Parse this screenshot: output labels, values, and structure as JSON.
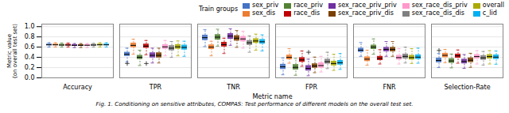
{
  "chart_data": {
    "type": "box",
    "title": "Train groups",
    "xlabel": "Metric name",
    "ylabel": "Metric value\n(on overall test set)",
    "caption": "Fig. 1.  Conditioning on sensitive attributes, COMPAS: Test performance of different models on the overall test set.",
    "categories": [
      "Accuracy",
      "TPR",
      "TNR",
      "FPR",
      "FNR",
      "Selection-Rate"
    ],
    "series": [
      {
        "name": "sex_priv",
        "color": "#4472C4",
        "values": [
          {
            "q1": 0.63,
            "med": 0.645,
            "q3": 0.66,
            "whislo": 0.6,
            "whishi": 0.685,
            "fliers": []
          },
          {
            "q1": 0.42,
            "med": 0.46,
            "q3": 0.5,
            "whislo": 0.31,
            "whishi": 0.58,
            "fliers": [
              0.28
            ]
          },
          {
            "q1": 0.73,
            "med": 0.785,
            "q3": 0.835,
            "whislo": 0.61,
            "whishi": 0.94,
            "fliers": []
          },
          {
            "q1": 0.165,
            "med": 0.215,
            "q3": 0.265,
            "whislo": 0.06,
            "whishi": 0.39,
            "fliers": []
          },
          {
            "q1": 0.5,
            "med": 0.54,
            "q3": 0.58,
            "whislo": 0.42,
            "whishi": 0.69,
            "fliers": []
          },
          {
            "q1": 0.295,
            "med": 0.34,
            "q3": 0.385,
            "whislo": 0.2,
            "whishi": 0.475,
            "fliers": [
              0.535
            ]
          }
        ]
      },
      {
        "name": "sex_dis",
        "color": "#ED7D31",
        "values": [
          {
            "q1": 0.63,
            "med": 0.645,
            "q3": 0.66,
            "whislo": 0.6,
            "whishi": 0.685,
            "fliers": []
          },
          {
            "q1": 0.59,
            "med": 0.635,
            "q3": 0.68,
            "whislo": 0.46,
            "whishi": 0.755,
            "fliers": []
          },
          {
            "q1": 0.555,
            "med": 0.6,
            "q3": 0.645,
            "whislo": 0.43,
            "whishi": 0.715,
            "fliers": []
          },
          {
            "q1": 0.355,
            "med": 0.4,
            "q3": 0.445,
            "whislo": 0.285,
            "whishi": 0.57,
            "fliers": []
          },
          {
            "q1": 0.32,
            "med": 0.365,
            "q3": 0.41,
            "whislo": 0.245,
            "whishi": 0.54,
            "fliers": []
          },
          {
            "q1": 0.395,
            "med": 0.44,
            "q3": 0.48,
            "whislo": 0.295,
            "whishi": 0.555,
            "fliers": []
          }
        ]
      },
      {
        "name": "race_priv",
        "color": "#548235",
        "values": [
          {
            "q1": 0.625,
            "med": 0.64,
            "q3": 0.655,
            "whislo": 0.6,
            "whishi": 0.68,
            "fliers": []
          },
          {
            "q1": 0.36,
            "med": 0.4,
            "q3": 0.44,
            "whislo": 0.24,
            "whishi": 0.54,
            "fliers": []
          },
          {
            "q1": 0.74,
            "med": 0.795,
            "q3": 0.845,
            "whislo": 0.62,
            "whishi": 0.95,
            "fliers": []
          },
          {
            "q1": 0.155,
            "med": 0.205,
            "q3": 0.26,
            "whislo": 0.05,
            "whishi": 0.38,
            "fliers": []
          },
          {
            "q1": 0.556,
            "med": 0.6,
            "q3": 0.64,
            "whislo": 0.46,
            "whishi": 0.76,
            "fliers": []
          },
          {
            "q1": 0.285,
            "med": 0.33,
            "q3": 0.375,
            "whislo": 0.195,
            "whishi": 0.465,
            "fliers": []
          }
        ]
      },
      {
        "name": "race_dis",
        "color": "#C00000",
        "values": [
          {
            "q1": 0.625,
            "med": 0.64,
            "q3": 0.655,
            "whislo": 0.6,
            "whishi": 0.68,
            "fliers": []
          },
          {
            "q1": 0.58,
            "med": 0.62,
            "q3": 0.66,
            "whislo": 0.45,
            "whishi": 0.73,
            "fliers": [
              0.28
            ]
          },
          {
            "q1": 0.605,
            "med": 0.65,
            "q3": 0.695,
            "whislo": 0.475,
            "whishi": 0.775,
            "fliers": []
          },
          {
            "q1": 0.305,
            "med": 0.35,
            "q3": 0.395,
            "whislo": 0.225,
            "whishi": 0.525,
            "fliers": []
          },
          {
            "q1": 0.34,
            "med": 0.38,
            "q3": 0.42,
            "whislo": 0.27,
            "whishi": 0.55,
            "fliers": []
          },
          {
            "q1": 0.385,
            "med": 0.43,
            "q3": 0.465,
            "whislo": 0.285,
            "whishi": 0.545,
            "fliers": []
          }
        ]
      },
      {
        "name": "sex_race_priv_priv",
        "color": "#7030A0",
        "values": [
          {
            "q1": 0.62,
            "med": 0.635,
            "q3": 0.65,
            "whislo": 0.59,
            "whishi": 0.67,
            "fliers": []
          },
          {
            "q1": 0.39,
            "med": 0.44,
            "q3": 0.49,
            "whislo": 0.29,
            "whishi": 0.58,
            "fliers": []
          },
          {
            "q1": 0.755,
            "med": 0.815,
            "q3": 0.865,
            "whislo": 0.635,
            "whishi": 0.96,
            "fliers": []
          },
          {
            "q1": 0.135,
            "med": 0.185,
            "q3": 0.24,
            "whislo": 0.04,
            "whishi": 0.365,
            "fliers": [
              0.5
            ]
          },
          {
            "q1": 0.51,
            "med": 0.555,
            "q3": 0.595,
            "whislo": 0.42,
            "whishi": 0.71,
            "fliers": []
          },
          {
            "q1": 0.275,
            "med": 0.32,
            "q3": 0.365,
            "whislo": 0.185,
            "whishi": 0.455,
            "fliers": []
          }
        ]
      },
      {
        "name": "sex_race_priv_dis",
        "color": "#7B3F00",
        "values": [
          {
            "q1": 0.62,
            "med": 0.635,
            "q3": 0.65,
            "whislo": 0.59,
            "whishi": 0.67,
            "fliers": []
          },
          {
            "q1": 0.39,
            "med": 0.44,
            "q3": 0.49,
            "whislo": 0.29,
            "whishi": 0.58,
            "fliers": []
          },
          {
            "q1": 0.72,
            "med": 0.775,
            "q3": 0.825,
            "whislo": 0.595,
            "whishi": 0.925,
            "fliers": []
          },
          {
            "q1": 0.19,
            "med": 0.23,
            "q3": 0.275,
            "whislo": 0.1,
            "whishi": 0.405,
            "fliers": []
          },
          {
            "q1": 0.51,
            "med": 0.555,
            "q3": 0.595,
            "whislo": 0.42,
            "whishi": 0.71,
            "fliers": []
          },
          {
            "q1": 0.3,
            "med": 0.345,
            "q3": 0.39,
            "whislo": 0.205,
            "whishi": 0.48,
            "fliers": []
          }
        ]
      },
      {
        "name": "sex_race_dis_priv",
        "color": "#FF99CC",
        "values": [
          {
            "q1": 0.62,
            "med": 0.637,
            "q3": 0.652,
            "whislo": 0.59,
            "whishi": 0.67,
            "fliers": []
          },
          {
            "q1": 0.56,
            "med": 0.605,
            "q3": 0.65,
            "whislo": 0.43,
            "whishi": 0.73,
            "fliers": []
          },
          {
            "q1": 0.705,
            "med": 0.76,
            "q3": 0.81,
            "whislo": 0.58,
            "whishi": 0.91,
            "fliers": []
          },
          {
            "q1": 0.19,
            "med": 0.24,
            "q3": 0.295,
            "whislo": 0.115,
            "whishi": 0.42,
            "fliers": []
          },
          {
            "q1": 0.35,
            "med": 0.395,
            "q3": 0.44,
            "whislo": 0.27,
            "whishi": 0.57,
            "fliers": []
          },
          {
            "q1": 0.37,
            "med": 0.415,
            "q3": 0.455,
            "whislo": 0.27,
            "whishi": 0.53,
            "fliers": []
          }
        ]
      },
      {
        "name": "sex_race_dis_dis",
        "color": "#808080",
        "values": [
          {
            "q1": 0.625,
            "med": 0.64,
            "q3": 0.655,
            "whislo": 0.6,
            "whishi": 0.675,
            "fliers": []
          },
          {
            "q1": 0.53,
            "med": 0.58,
            "q3": 0.63,
            "whislo": 0.4,
            "whishi": 0.71,
            "fliers": []
          },
          {
            "q1": 0.635,
            "med": 0.685,
            "q3": 0.73,
            "whislo": 0.5,
            "whishi": 0.82,
            "fliers": []
          },
          {
            "q1": 0.27,
            "med": 0.315,
            "q3": 0.365,
            "whislo": 0.18,
            "whishi": 0.5,
            "fliers": []
          },
          {
            "q1": 0.37,
            "med": 0.42,
            "q3": 0.465,
            "whislo": 0.29,
            "whishi": 0.6,
            "fliers": []
          },
          {
            "q1": 0.345,
            "med": 0.39,
            "q3": 0.435,
            "whislo": 0.25,
            "whishi": 0.515,
            "fliers": []
          }
        ]
      },
      {
        "name": "overall",
        "color": "#AAAA00",
        "values": [
          {
            "q1": 0.63,
            "med": 0.645,
            "q3": 0.66,
            "whislo": 0.6,
            "whishi": 0.685,
            "fliers": []
          },
          {
            "q1": 0.56,
            "med": 0.605,
            "q3": 0.65,
            "whislo": 0.43,
            "whishi": 0.72,
            "fliers": []
          },
          {
            "q1": 0.675,
            "med": 0.72,
            "q3": 0.765,
            "whislo": 0.54,
            "whishi": 0.855,
            "fliers": []
          },
          {
            "q1": 0.235,
            "med": 0.28,
            "q3": 0.325,
            "whislo": 0.145,
            "whishi": 0.46,
            "fliers": []
          },
          {
            "q1": 0.35,
            "med": 0.395,
            "q3": 0.44,
            "whislo": 0.28,
            "whishi": 0.57,
            "fliers": []
          },
          {
            "q1": 0.37,
            "med": 0.415,
            "q3": 0.455,
            "whislo": 0.27,
            "whishi": 0.53,
            "fliers": []
          }
        ]
      },
      {
        "name": "c_lid",
        "color": "#00B0F0",
        "values": [
          {
            "q1": 0.63,
            "med": 0.645,
            "q3": 0.66,
            "whislo": 0.6,
            "whishi": 0.685,
            "fliers": []
          },
          {
            "q1": 0.545,
            "med": 0.595,
            "q3": 0.64,
            "whislo": 0.42,
            "whishi": 0.715,
            "fliers": []
          },
          {
            "q1": 0.66,
            "med": 0.705,
            "q3": 0.75,
            "whislo": 0.525,
            "whishi": 0.84,
            "fliers": []
          },
          {
            "q1": 0.25,
            "med": 0.295,
            "q3": 0.34,
            "whislo": 0.165,
            "whishi": 0.475,
            "fliers": []
          },
          {
            "q1": 0.36,
            "med": 0.405,
            "q3": 0.45,
            "whislo": 0.285,
            "whishi": 0.58,
            "fliers": []
          },
          {
            "q1": 0.36,
            "med": 0.405,
            "q3": 0.448,
            "whislo": 0.265,
            "whishi": 0.525,
            "fliers": []
          }
        ]
      }
    ],
    "ylim": [
      0.0,
      1.05
    ],
    "yticks": [
      {
        "value": 0.0,
        "label": "0.0"
      },
      0.2,
      0.4,
      0.6,
      0.8,
      {
        "value": 1.0,
        "label": "1.0"
      }
    ],
    "grid": true,
    "legend": "upper right"
  }
}
